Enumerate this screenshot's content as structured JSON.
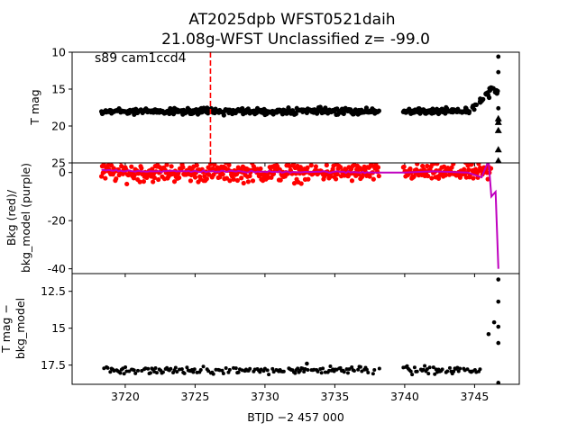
{
  "title": {
    "line1": "AT2025dpb  WFST0521daih",
    "line2": "21.08g-WFST Unclassified z= -99.0"
  },
  "xlabel": "BTJD −2 457 000",
  "annotation": "s89 cam1ccd4",
  "chart_data": [
    {
      "type": "scatter",
      "panel": "top",
      "ylabel": "T mag",
      "ylim": [
        25,
        10
      ],
      "inverted_y": true,
      "yticks": [
        10,
        15,
        20,
        25
      ],
      "xlim": [
        3716.2,
        3748.2
      ],
      "marker_line_x": 3726.1,
      "marker_line_color": "#ff0000",
      "series": [
        {
          "color": "#000000",
          "segments": [
            {
              "x_start": 3718.3,
              "x_end": 3738.2,
              "y_center": 18.0,
              "y_spread": 0.6
            },
            {
              "x_start": 3739.9,
              "x_end": 3744.5,
              "y_center": 18.0,
              "y_spread": 0.6
            }
          ],
          "rise": {
            "x": [
              3744.5,
              3745.0,
              3745.5,
              3745.9,
              3746.2,
              3746.5
            ],
            "y": [
              17.9,
              17.5,
              16.5,
              15.6,
              15.0,
              15.5
            ]
          },
          "late_points": {
            "x": [
              3746.7,
              3746.7,
              3746.7,
              3746.7
            ],
            "y": [
              10.6,
              12.7,
              17.6,
              19.4
            ]
          },
          "triangles": {
            "x": [
              3746.7,
              3746.7,
              3746.7,
              3746.7,
              3746.7
            ],
            "y": [
              19.0,
              19.5,
              20.6,
              23.2,
              24.7
            ]
          }
        }
      ]
    },
    {
      "type": "scatter",
      "panel": "middle",
      "ylabel_line1": "Bkg (red)/",
      "ylabel_line2": "bkg_model (purple)",
      "ylim": [
        -42,
        4
      ],
      "yticks": [
        0,
        -20,
        -40
      ],
      "xlim": [
        3716.2,
        3748.2
      ],
      "series": [
        {
          "name": "Bkg",
          "color": "#ff0000",
          "segments": [
            {
              "x_start": 3718.3,
              "x_end": 3738.2,
              "y_center": 0.0,
              "y_spread": 5.5
            },
            {
              "x_start": 3739.9,
              "x_end": 3746.2,
              "y_center": 0.0,
              "y_spread": 5.0
            }
          ]
        },
        {
          "name": "bkg_model",
          "color": "#bf00bf",
          "x": [
            3718.3,
            3722,
            3726,
            3730,
            3734,
            3738.2,
            3739.9,
            3742,
            3744.5,
            3745.5,
            3746.0,
            3746.2,
            3746.5,
            3746.7
          ],
          "y": [
            1.0,
            0.5,
            0.5,
            0.3,
            0.3,
            0.0,
            0.0,
            0.5,
            0.0,
            -2.0,
            5.0,
            -10.0,
            -8.0,
            -40.0
          ]
        }
      ]
    },
    {
      "type": "scatter",
      "panel": "bottom",
      "ylabel_line1": "T mag −",
      "ylabel_line2": "bkg_model",
      "ylim": [
        18.8,
        11.3
      ],
      "inverted_y": true,
      "yticks": [
        12.5,
        15.0,
        17.5
      ],
      "xlim": [
        3716.2,
        3748.2
      ],
      "series": [
        {
          "color": "#000000",
          "segments": [
            {
              "x_start": 3718.3,
              "x_end": 3738.2,
              "y_center": 17.85,
              "y_spread": 0.35
            },
            {
              "x_start": 3739.9,
              "x_end": 3745.4,
              "y_center": 17.85,
              "y_spread": 0.35
            }
          ],
          "extra": {
            "x": [
              3733.0,
              3746.0,
              3746.4,
              3746.7,
              3746.7,
              3746.7,
              3746.7
            ],
            "y": [
              17.4,
              15.4,
              14.6,
              11.7,
              13.2,
              14.9,
              16.0
            ]
          },
          "tail": {
            "x": [
              3746.7
            ],
            "y": [
              18.7
            ]
          }
        }
      ]
    }
  ],
  "xticks": [
    3720,
    3725,
    3730,
    3735,
    3740,
    3745
  ]
}
